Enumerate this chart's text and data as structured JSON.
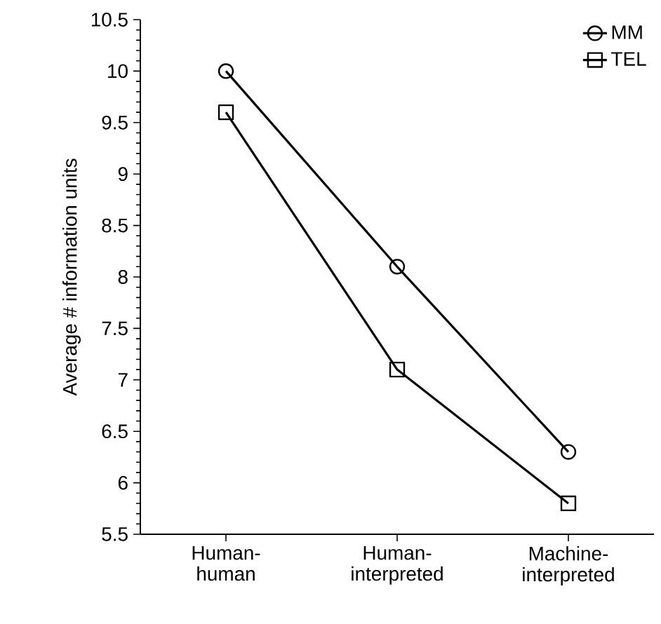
{
  "chart_data": {
    "type": "line",
    "ylabel": "Average # information units",
    "categories": [
      "Human-human",
      "Human-interpreted",
      "Machine-interpreted"
    ],
    "series": [
      {
        "name": "MM",
        "color": "#000000",
        "marker": "circle",
        "values": [
          10.0,
          8.1,
          6.3
        ]
      },
      {
        "name": "TEL",
        "color": "#000000",
        "marker": "square",
        "values": [
          9.6,
          7.1,
          5.8
        ]
      }
    ],
    "ylim": [
      5.5,
      10.5
    ],
    "yticks": [
      5.5,
      6,
      6.5,
      7,
      7.5,
      8,
      8.5,
      9,
      9.5,
      10,
      10.5
    ],
    "legend": "top right",
    "grid": false,
    "line_style": "solid"
  }
}
